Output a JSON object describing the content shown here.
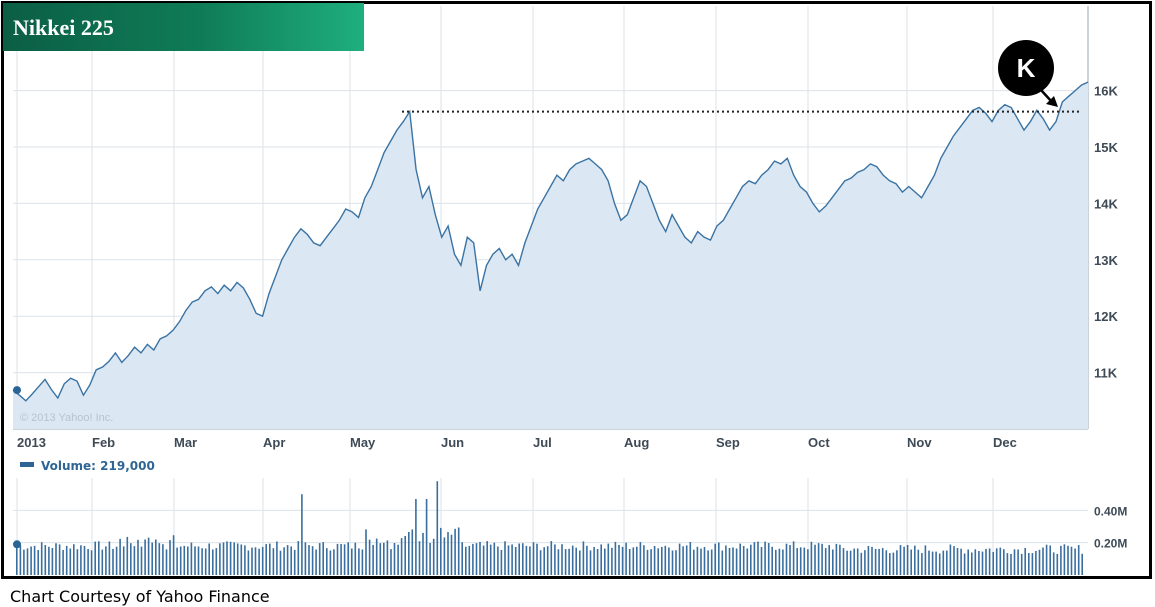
{
  "chart_data": {
    "type": "area",
    "title": "Nikkei 225",
    "watermark": "© 2013 Yahoo! Inc.",
    "x_ticks": [
      "2013",
      "Feb",
      "Mar",
      "Apr",
      "May",
      "Jun",
      "Jul",
      "Aug",
      "Sep",
      "Oct",
      "Nov",
      "Dec"
    ],
    "y_ticks": [
      "11K",
      "12K",
      "13K",
      "14K",
      "15K",
      "16K"
    ],
    "y_tick_values": [
      11000,
      12000,
      13000,
      14000,
      15000,
      16000
    ],
    "ylim": [
      10000,
      17500
    ],
    "series": [
      {
        "values": [
          10690,
          10600,
          10500,
          10620,
          10750,
          10880,
          10700,
          10550,
          10800,
          10900,
          10850,
          10600,
          10780,
          11050,
          11100,
          11200,
          11350,
          11180,
          11300,
          11450,
          11350,
          11500,
          11400,
          11600,
          11650,
          11750,
          11900,
          12100,
          12250,
          12300,
          12450,
          12520,
          12400,
          12550,
          12450,
          12600,
          12500,
          12300,
          12050,
          12000,
          12400,
          12700,
          13000,
          13200,
          13400,
          13550,
          13450,
          13300,
          13250,
          13400,
          13550,
          13700,
          13900,
          13850,
          13750,
          14100,
          14300,
          14600,
          14900,
          15100,
          15300,
          15450,
          15627,
          14600,
          14100,
          14300,
          13800,
          13400,
          13600,
          13100,
          12900,
          13400,
          13300,
          12450,
          12900,
          13100,
          13200,
          13000,
          13100,
          12900,
          13300,
          13600,
          13900,
          14100,
          14300,
          14500,
          14400,
          14600,
          14700,
          14750,
          14800,
          14700,
          14600,
          14400,
          14000,
          13700,
          13800,
          14100,
          14400,
          14300,
          14000,
          13700,
          13500,
          13800,
          13600,
          13400,
          13300,
          13500,
          13400,
          13350,
          13600,
          13700,
          13900,
          14100,
          14300,
          14400,
          14350,
          14500,
          14600,
          14750,
          14700,
          14800,
          14500,
          14300,
          14200,
          14000,
          13850,
          13950,
          14100,
          14250,
          14400,
          14450,
          14550,
          14600,
          14700,
          14650,
          14500,
          14400,
          14350,
          14200,
          14300,
          14200,
          14100,
          14300,
          14500,
          14800,
          15000,
          15200,
          15350,
          15500,
          15650,
          15700,
          15600,
          15450,
          15650,
          15750,
          15700,
          15500,
          15300,
          15450,
          15650,
          15500,
          15300,
          15450,
          15800,
          15900,
          16000,
          16100,
          16150
        ]
      }
    ],
    "resistance_level": 15627,
    "annotation_label": "K",
    "volume": {
      "legend": "Volume: 219,000",
      "y_ticks": [
        "0.40M",
        "0.20M"
      ],
      "y_tick_values": [
        400000,
        200000
      ],
      "ylim": [
        0,
        600000
      ]
    }
  },
  "caption": "Chart Courtesy of Yahoo Finance",
  "colors": {
    "line": "#3a73a3",
    "fill": "#dbe8f3",
    "grid": "#dce3ea",
    "volume_bar": "#3a6e9e",
    "text": "#3e4a56"
  }
}
